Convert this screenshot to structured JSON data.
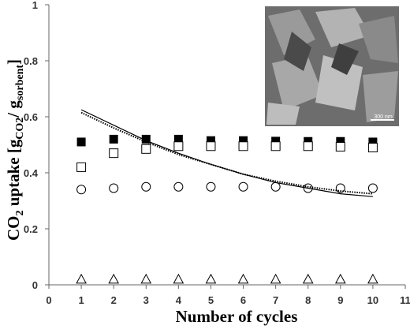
{
  "chart_data": {
    "type": "scatter",
    "y_label": {
      "main": "CO",
      "sub1": "2",
      "mid": " uptake [g",
      "sub2": "CO2",
      "sep": "/ g",
      "sub3": "sorbent",
      "end": "]"
    },
    "x_label": "Number of cycles",
    "annotation": "300 nm",
    "x": [
      1,
      2,
      3,
      4,
      5,
      6,
      7,
      8,
      9,
      10
    ],
    "xlim": [
      0,
      11
    ],
    "xticks": [
      0,
      1,
      2,
      3,
      4,
      5,
      6,
      7,
      8,
      9,
      10,
      11
    ],
    "ylim": [
      0,
      1
    ],
    "yticks": [
      0,
      0.2,
      0.4,
      0.6,
      0.8,
      1
    ],
    "series": [
      {
        "marker": "filled-square",
        "color": "#000000",
        "values": [
          0.51,
          0.52,
          0.52,
          0.52,
          0.515,
          0.515,
          0.513,
          0.512,
          0.512,
          0.51
        ]
      },
      {
        "marker": "open-square",
        "color": "#000000",
        "values": [
          0.42,
          0.47,
          0.485,
          0.495,
          0.495,
          0.495,
          0.495,
          0.495,
          0.493,
          0.49
        ]
      },
      {
        "marker": "open-circle",
        "color": "#000000",
        "values": [
          0.34,
          0.345,
          0.35,
          0.35,
          0.35,
          0.35,
          0.35,
          0.345,
          0.345,
          0.345
        ]
      },
      {
        "marker": "open-triangle",
        "color": "#000000",
        "values": [
          0.02,
          0.02,
          0.02,
          0.02,
          0.02,
          0.02,
          0.02,
          0.02,
          0.02,
          0.02
        ]
      },
      {
        "line": "solid",
        "color": "#000000",
        "values": [
          0.625,
          0.57,
          0.515,
          0.47,
          0.43,
          0.395,
          0.365,
          0.345,
          0.325,
          0.315
        ]
      },
      {
        "line": "dotted",
        "color": "#000000",
        "values": [
          0.615,
          0.56,
          0.51,
          0.465,
          0.43,
          0.395,
          0.37,
          0.35,
          0.335,
          0.325
        ]
      }
    ]
  }
}
